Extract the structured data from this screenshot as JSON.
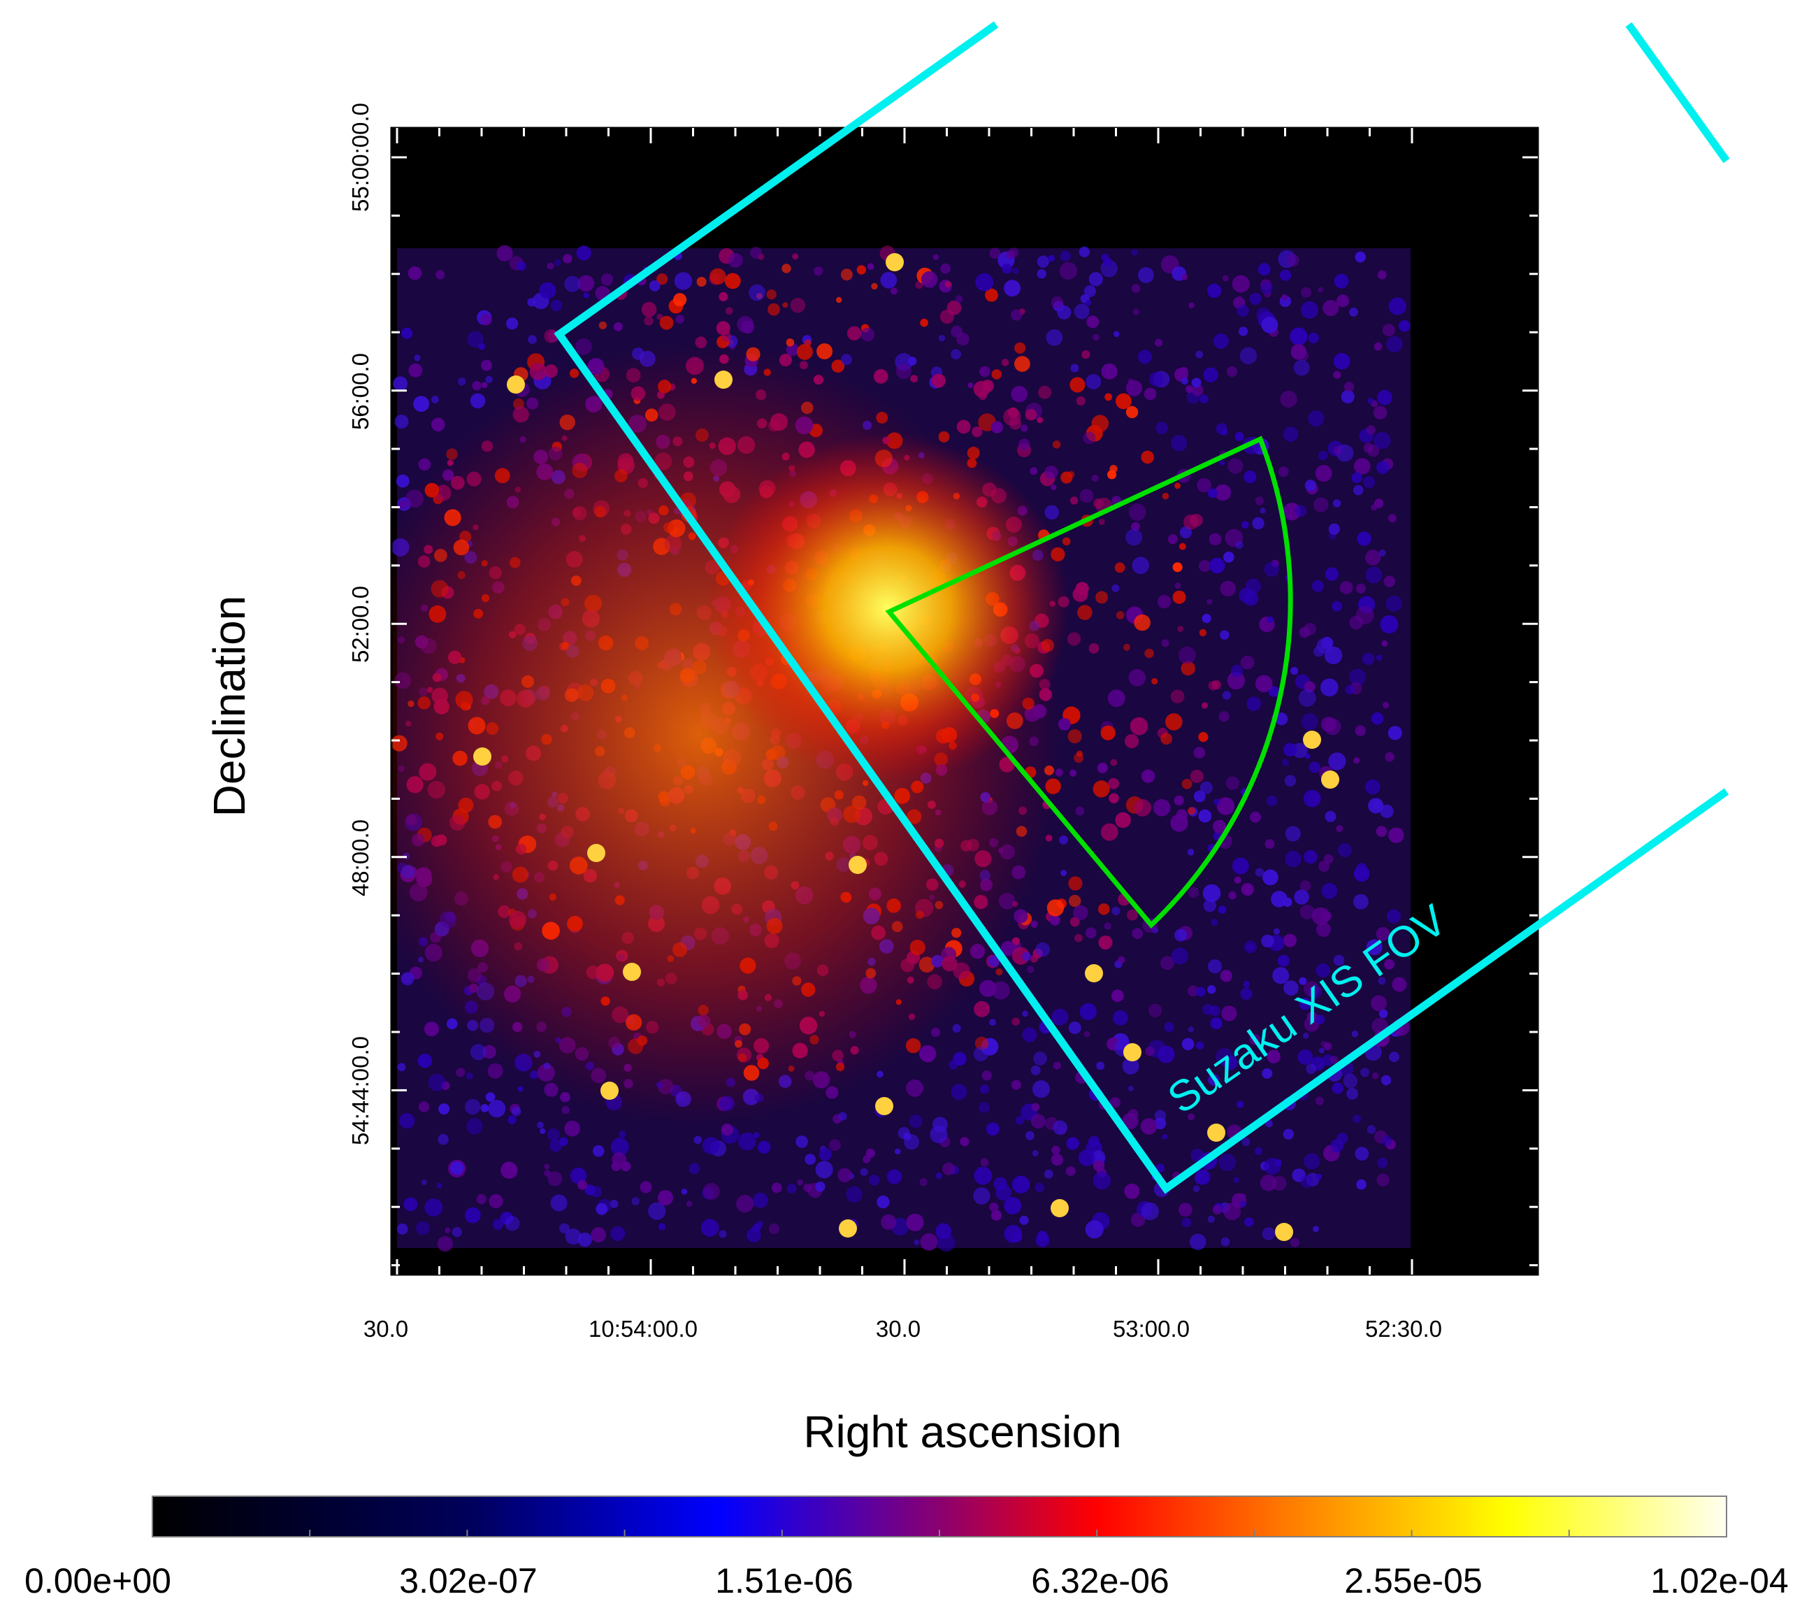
{
  "chart_data": {
    "type": "heatmap",
    "title": "",
    "xlabel": "Right ascension",
    "ylabel": "Declination",
    "x_tick_labels": [
      "30.0",
      "10:54:00.0",
      "30.0",
      "53:00.0",
      "52:30.0"
    ],
    "y_tick_labels": [
      "55:00:00.0",
      "56:00.0",
      "52:00.0",
      "48:00.0",
      "54:44:00.0"
    ],
    "colorbar": {
      "tick_labels": [
        "0.00e+00",
        "3.02e-07",
        "1.51e-06",
        "6.32e-06",
        "2.55e-05",
        "1.02e-04"
      ],
      "colors": [
        "#000000",
        "#00005a",
        "#0000ff",
        "#8a0070",
        "#ff0000",
        "#ff7a00",
        "#ffff00",
        "#fffff0"
      ]
    },
    "annotations": [
      {
        "text": "Suzaku XIS FOV",
        "color": "#00f0f0"
      }
    ],
    "regions": [
      {
        "shape": "box",
        "color": "#00f0f0"
      },
      {
        "shape": "sector",
        "color": "#00e000"
      }
    ],
    "grid": false
  }
}
